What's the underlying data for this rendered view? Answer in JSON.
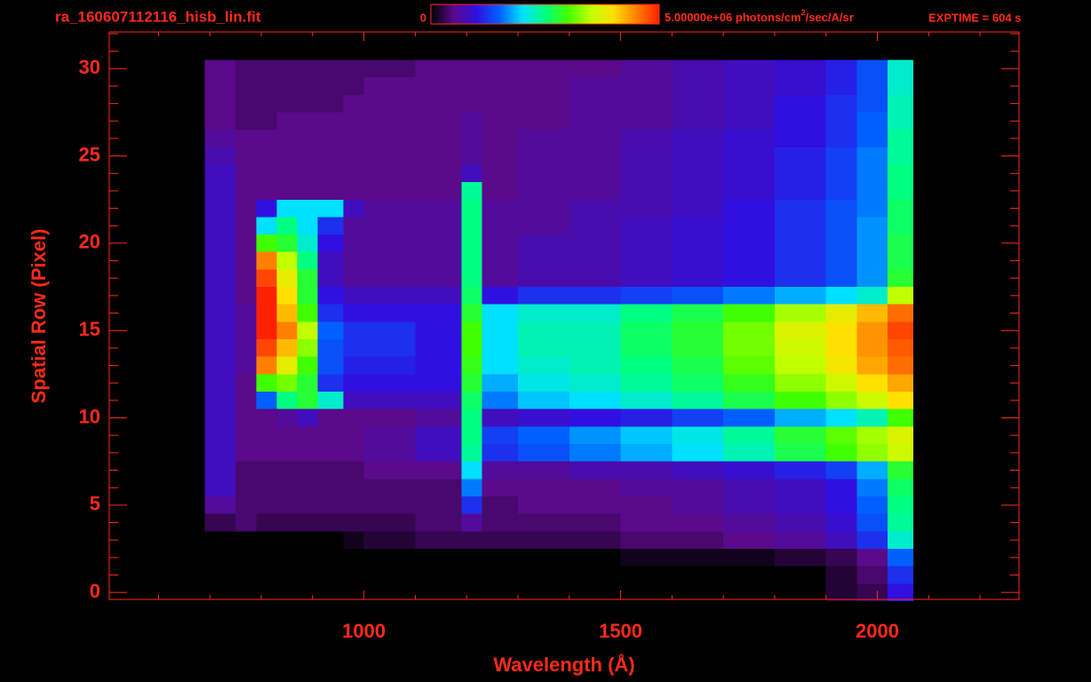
{
  "chart_data": {
    "type": "heatmap",
    "title": "ra_160607112116_hisb_lin.fit",
    "exptime": "EXPTIME = 604 s",
    "xlabel": "Wavelength (Å)",
    "ylabel": "Spatial Row (Pixel)",
    "colorbar_unit": [
      "photons/cm",
      "2",
      "/sec/A/sr"
    ],
    "zlim": [
      0,
      5000000
    ],
    "zticks": [
      0,
      {
        "value": 5000000,
        "label": "5.00000e+06"
      }
    ],
    "colormap": [
      "#000000",
      "#5a0a8a",
      "#3010e0",
      "#0060ff",
      "#00e0ff",
      "#00ff80",
      "#40ff00",
      "#c0ff00",
      "#ffe000",
      "#ff8000",
      "#ff2000"
    ],
    "xlim": [
      504,
      2276
    ],
    "ylim": [
      -0.4,
      32.1
    ],
    "xticks": [
      1000,
      1500,
      2000
    ],
    "xminorticks": [
      600,
      700,
      800,
      900,
      1100,
      1200,
      1300,
      1400,
      1600,
      1700,
      1800,
      1900,
      2100,
      2200
    ],
    "yticks": [
      0,
      5,
      10,
      15,
      20,
      25,
      30
    ],
    "yminorticks": [
      1,
      2,
      3,
      4,
      6,
      7,
      8,
      9,
      11,
      12,
      13,
      14,
      16,
      17,
      18,
      19,
      21,
      22,
      23,
      24,
      26,
      27,
      28,
      29,
      31,
      32
    ],
    "x_bins": [
      690,
      750,
      790,
      830,
      870,
      910,
      960,
      1000,
      1100,
      1190,
      1230,
      1300,
      1400,
      1500,
      1600,
      1700,
      1800,
      1900,
      1960,
      2020,
      2070
    ],
    "y": [
      0,
      1,
      2,
      3,
      4,
      5,
      6,
      7,
      8,
      9,
      10,
      11,
      12,
      13,
      14,
      15,
      16,
      17,
      18,
      19,
      20,
      21,
      22,
      23,
      24,
      25,
      26,
      27,
      28,
      29,
      30
    ],
    "z": [
      [
        0,
        0,
        0,
        0,
        0,
        0,
        0,
        0,
        0,
        0,
        0,
        0,
        0,
        0,
        0,
        0,
        0,
        200000.0,
        300000.0,
        1000000.0
      ],
      [
        0,
        0,
        0,
        0,
        0,
        0,
        0,
        0,
        0,
        0,
        0,
        0,
        0,
        0,
        0,
        0,
        0,
        200000.0,
        400000.0,
        1200000.0
      ],
      [
        0,
        0,
        0,
        0,
        0,
        0,
        0,
        0,
        0,
        0,
        0,
        0,
        0,
        100000.0,
        100000.0,
        100000.0,
        200000.0,
        300000.0,
        500000.0,
        1500000.0
      ],
      [
        0,
        0,
        0,
        0,
        0,
        0,
        100000.0,
        200000.0,
        300000.0,
        300000.0,
        300000.0,
        300000.0,
        300000.0,
        400000.0,
        400000.0,
        500000.0,
        600000.0,
        800000.0,
        1200000.0,
        2200000.0
      ],
      [
        300000.0,
        400000.0,
        300000.0,
        300000.0,
        300000.0,
        300000.0,
        300000.0,
        300000.0,
        400000.0,
        600000.0,
        400000.0,
        400000.0,
        400000.0,
        500000.0,
        500000.0,
        600000.0,
        700000.0,
        900000.0,
        1400000.0,
        2400000.0
      ],
      [
        600000.0,
        400000.0,
        400000.0,
        400000.0,
        400000.0,
        400000.0,
        400000.0,
        400000.0,
        400000.0,
        1200000.0,
        400000.0,
        500000.0,
        500000.0,
        500000.0,
        600000.0,
        700000.0,
        800000.0,
        1000000.0,
        1500000.0,
        2500000.0
      ],
      [
        800000.0,
        400000.0,
        400000.0,
        400000.0,
        400000.0,
        400000.0,
        400000.0,
        400000.0,
        400000.0,
        1600000.0,
        500000.0,
        500000.0,
        500000.0,
        600000.0,
        600000.0,
        700000.0,
        800000.0,
        1000000.0,
        1600000.0,
        2600000.0
      ],
      [
        800000.0,
        400000.0,
        400000.0,
        400000.0,
        400000.0,
        400000.0,
        400000.0,
        500000.0,
        500000.0,
        2000000.0,
        600000.0,
        600000.0,
        700000.0,
        700000.0,
        800000.0,
        900000.0,
        1100000.0,
        1300000.0,
        1800000.0,
        2800000.0
      ],
      [
        800000.0,
        500000.0,
        500000.0,
        500000.0,
        500000.0,
        500000.0,
        500000.0,
        600000.0,
        800000.0,
        2400000.0,
        1200000.0,
        1400000.0,
        1600000.0,
        1800000.0,
        2000000.0,
        2300000.0,
        2700000.0,
        3000000.0,
        3300000.0,
        3600000.0
      ],
      [
        800000.0,
        500000.0,
        500000.0,
        500000.0,
        500000.0,
        500000.0,
        500000.0,
        600000.0,
        800000.0,
        2500000.0,
        1300000.0,
        1500000.0,
        1700000.0,
        1900000.0,
        2100000.0,
        2400000.0,
        2800000.0,
        3100000.0,
        3400000.0,
        3700000.0
      ],
      [
        800000.0,
        500000.0,
        500000.0,
        600000.0,
        800000.0,
        500000.0,
        500000.0,
        500000.0,
        600000.0,
        2500000.0,
        800000.0,
        900000.0,
        1000000.0,
        1100000.0,
        1300000.0,
        1500000.0,
        1800000.0,
        2000000.0,
        2300000.0,
        3000000.0
      ],
      [
        800000.0,
        500000.0,
        1500000.0,
        2500000.0,
        2800000.0,
        2200000.0,
        800000.0,
        800000.0,
        800000.0,
        2600000.0,
        1600000.0,
        1900000.0,
        2000000.0,
        2200000.0,
        2400000.0,
        2700000.0,
        3000000.0,
        3300000.0,
        3600000.0,
        4000000.0
      ],
      [
        800000.0,
        500000.0,
        3000000.0,
        3200000.0,
        2800000.0,
        1200000.0,
        1000000.0,
        1000000.0,
        1000000.0,
        2800000.0,
        1800000.0,
        2100000.0,
        2200000.0,
        2400000.0,
        2600000.0,
        2900000.0,
        3300000.0,
        3600000.0,
        4000000.0,
        4300000.0
      ],
      [
        800000.0,
        600000.0,
        4500000.0,
        3800000.0,
        3000000.0,
        1400000.0,
        1100000.0,
        1100000.0,
        1000000.0,
        2900000.0,
        2000000.0,
        2200000.0,
        2300000.0,
        2500000.0,
        2700000.0,
        3100000.0,
        3500000.0,
        3900000.0,
        4300000.0,
        4600000.0
      ],
      [
        800000.0,
        600000.0,
        4800000.0,
        4200000.0,
        3300000.0,
        1400000.0,
        1200000.0,
        1200000.0,
        1000000.0,
        3000000.0,
        2000000.0,
        2300000.0,
        2300000.0,
        2600000.0,
        2800000.0,
        3200000.0,
        3600000.0,
        4000000.0,
        4400000.0,
        4700000.0
      ],
      [
        800000.0,
        600000.0,
        5000000.0,
        4500000.0,
        3500000.0,
        1500000.0,
        1200000.0,
        1200000.0,
        1000000.0,
        3000000.0,
        2000000.0,
        2300000.0,
        2300000.0,
        2600000.0,
        2800000.0,
        3200000.0,
        3700000.0,
        4000000.0,
        4400000.0,
        4800000.0
      ],
      [
        800000.0,
        600000.0,
        5000000.0,
        4200000.0,
        3000000.0,
        1200000.0,
        1000000.0,
        1000000.0,
        1000000.0,
        2800000.0,
        2000000.0,
        2200000.0,
        2200000.0,
        2500000.0,
        2700000.0,
        3000000.0,
        3400000.0,
        3800000.0,
        4200000.0,
        4600000.0
      ],
      [
        800000.0,
        500000.0,
        5000000.0,
        4000000.0,
        2800000.0,
        1000000.0,
        800000.0,
        800000.0,
        800000.0,
        2600000.0,
        1000000.0,
        1200000.0,
        1200000.0,
        1300000.0,
        1400000.0,
        1600000.0,
        1800000.0,
        2000000.0,
        2200000.0,
        3500000.0
      ],
      [
        800000.0,
        500000.0,
        4800000.0,
        3800000.0,
        2800000.0,
        800000.0,
        600000.0,
        600000.0,
        600000.0,
        2500000.0,
        600000.0,
        700000.0,
        700000.0,
        800000.0,
        900000.0,
        1000000.0,
        1200000.0,
        1400000.0,
        1700000.0,
        2800000.0
      ],
      [
        800000.0,
        500000.0,
        4500000.0,
        3500000.0,
        2500000.0,
        800000.0,
        600000.0,
        600000.0,
        600000.0,
        2500000.0,
        600000.0,
        700000.0,
        700000.0,
        800000.0,
        900000.0,
        1000000.0,
        1200000.0,
        1400000.0,
        1700000.0,
        2700000.0
      ],
      [
        800000.0,
        500000.0,
        3000000.0,
        2800000.0,
        2200000.0,
        1000000.0,
        600000.0,
        600000.0,
        600000.0,
        2500000.0,
        600000.0,
        700000.0,
        700000.0,
        800000.0,
        900000.0,
        1000000.0,
        1200000.0,
        1400000.0,
        1700000.0,
        2700000.0
      ],
      [
        800000.0,
        500000.0,
        2000000.0,
        2500000.0,
        2000000.0,
        1200000.0,
        600000.0,
        600000.0,
        600000.0,
        2500000.0,
        600000.0,
        600000.0,
        700000.0,
        800000.0,
        900000.0,
        1000000.0,
        1200000.0,
        1400000.0,
        1700000.0,
        2600000.0
      ],
      [
        800000.0,
        500000.0,
        1000000.0,
        2000000.0,
        2000000.0,
        2000000.0,
        800000.0,
        600000.0,
        600000.0,
        2500000.0,
        600000.0,
        600000.0,
        700000.0,
        700000.0,
        800000.0,
        1000000.0,
        1200000.0,
        1400000.0,
        1600000.0,
        2600000.0
      ],
      [
        800000.0,
        500000.0,
        500000.0,
        500000.0,
        500000.0,
        500000.0,
        500000.0,
        500000.0,
        500000.0,
        2400000.0,
        500000.0,
        600000.0,
        600000.0,
        700000.0,
        800000.0,
        900000.0,
        1100000.0,
        1300000.0,
        1600000.0,
        2500000.0
      ],
      [
        800000.0,
        500000.0,
        500000.0,
        500000.0,
        500000.0,
        500000.0,
        500000.0,
        500000.0,
        500000.0,
        800000.0,
        500000.0,
        600000.0,
        600000.0,
        700000.0,
        800000.0,
        900000.0,
        1100000.0,
        1300000.0,
        1600000.0,
        2500000.0
      ],
      [
        700000.0,
        500000.0,
        500000.0,
        500000.0,
        500000.0,
        500000.0,
        500000.0,
        500000.0,
        500000.0,
        600000.0,
        500000.0,
        600000.0,
        600000.0,
        700000.0,
        800000.0,
        900000.0,
        1100000.0,
        1300000.0,
        1600000.0,
        2400000.0
      ],
      [
        600000.0,
        500000.0,
        500000.0,
        500000.0,
        500000.0,
        500000.0,
        500000.0,
        500000.0,
        500000.0,
        600000.0,
        500000.0,
        600000.0,
        600000.0,
        700000.0,
        800000.0,
        900000.0,
        1000000.0,
        1200000.0,
        1500000.0,
        2400000.0
      ],
      [
        500000.0,
        400000.0,
        400000.0,
        500000.0,
        500000.0,
        500000.0,
        500000.0,
        500000.0,
        500000.0,
        600000.0,
        500000.0,
        500000.0,
        600000.0,
        600000.0,
        700000.0,
        800000.0,
        1000000.0,
        1200000.0,
        1500000.0,
        2300000.0
      ],
      [
        500000.0,
        400000.0,
        400000.0,
        400000.0,
        400000.0,
        400000.0,
        500000.0,
        500000.0,
        500000.0,
        500000.0,
        500000.0,
        500000.0,
        600000.0,
        600000.0,
        700000.0,
        800000.0,
        1000000.0,
        1200000.0,
        1400000.0,
        2300000.0
      ],
      [
        500000.0,
        400000.0,
        400000.0,
        400000.0,
        400000.0,
        400000.0,
        400000.0,
        500000.0,
        500000.0,
        500000.0,
        500000.0,
        500000.0,
        600000.0,
        600000.0,
        700000.0,
        800000.0,
        900000.0,
        1100000.0,
        1400000.0,
        2200000.0
      ],
      [
        500000.0,
        400000.0,
        400000.0,
        400000.0,
        400000.0,
        400000.0,
        400000.0,
        400000.0,
        500000.0,
        500000.0,
        500000.0,
        500000.0,
        500000.0,
        600000.0,
        700000.0,
        800000.0,
        900000.0,
        1100000.0,
        1400000.0,
        2200000.0
      ]
    ]
  }
}
